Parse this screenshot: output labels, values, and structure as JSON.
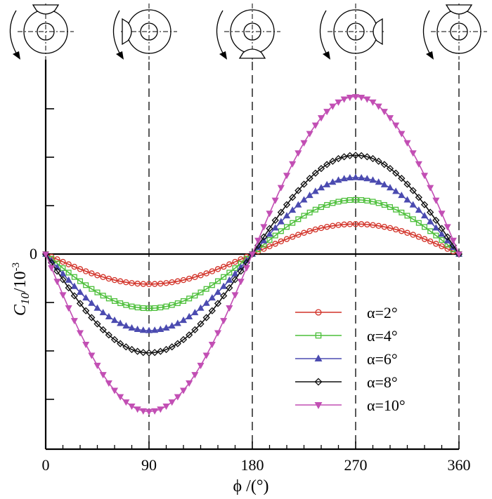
{
  "chart_data": {
    "type": "line",
    "title": "",
    "xlabel": "ϕ /(°)",
    "ylabel_main": "C",
    "ylabel_sub": "10",
    "ylabel_unit": "/10",
    "ylabel_exp": "-3",
    "xlim": [
      0,
      360
    ],
    "xticks": [
      0,
      90,
      180,
      270,
      360
    ],
    "ylim": [
      -4.2,
      4.2
    ],
    "yticks": [
      -3,
      -2,
      -1,
      0,
      1,
      2,
      3
    ],
    "yticklabels": [
      "",
      "",
      "",
      "0",
      "",
      "",
      ""
    ],
    "guide_lines_x": [
      90,
      180,
      270,
      360
    ],
    "legend_position": "lower-right",
    "marker_step_deg": 5,
    "series": [
      {
        "name": "α=2°",
        "color": "#d23228",
        "marker": "circle",
        "amplitude": 0.62,
        "y_at_0": 0,
        "y_at_90": -0.62,
        "y_at_180": 0,
        "y_at_270": 0.62,
        "y_at_360": 0
      },
      {
        "name": "α=4°",
        "color": "#4cbf3a",
        "marker": "square",
        "amplitude": 1.12,
        "y_at_0": 0,
        "y_at_90": -1.12,
        "y_at_180": 0,
        "y_at_270": 1.12,
        "y_at_360": 0
      },
      {
        "name": "α=6°",
        "color": "#4b4bb0",
        "marker": "triangle-up",
        "amplitude": 1.58,
        "y_at_0": 0,
        "y_at_90": -1.58,
        "y_at_180": 0,
        "y_at_270": 1.58,
        "y_at_360": 0
      },
      {
        "name": "α=8°",
        "color": "#111111",
        "marker": "diamond",
        "amplitude": 2.04,
        "y_at_0": 0,
        "y_at_90": -2.04,
        "y_at_180": 0,
        "y_at_270": 2.04,
        "y_at_360": 0
      },
      {
        "name": "α=10°",
        "color": "#c24fb4",
        "marker": "triangle-down",
        "amplitude": 3.25,
        "y_at_0": 0,
        "y_at_90": -3.25,
        "y_at_180": 0,
        "y_at_270": 3.25,
        "y_at_360": 0
      }
    ],
    "blade_icons": [
      {
        "angle": 0,
        "blade_position": "top",
        "rotation": "counter-clockwise"
      },
      {
        "angle": 90,
        "blade_position": "left",
        "rotation": "counter-clockwise"
      },
      {
        "angle": 180,
        "blade_position": "bottom",
        "rotation": "counter-clockwise"
      },
      {
        "angle": 270,
        "blade_position": "right",
        "rotation": "counter-clockwise"
      },
      {
        "angle": 360,
        "blade_position": "top",
        "rotation": "counter-clockwise"
      }
    ]
  }
}
